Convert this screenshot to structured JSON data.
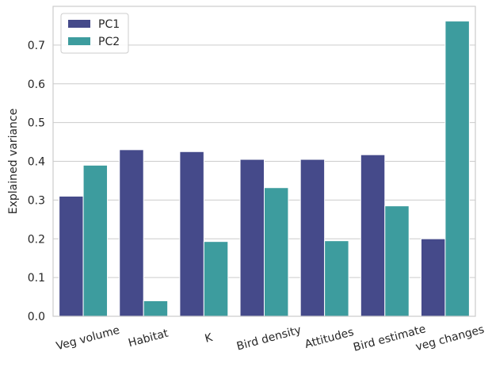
{
  "chart_data": {
    "type": "bar",
    "title": "",
    "xlabel": "",
    "ylabel": "Explained variance",
    "categories": [
      "Veg volume",
      "Habitat",
      "K",
      "Bird density",
      "Attitudes",
      "Bird estimate",
      "veg changes"
    ],
    "series": [
      {
        "name": "PC1",
        "color": "#454a8a",
        "values": [
          0.31,
          0.43,
          0.425,
          0.405,
          0.405,
          0.417,
          0.2
        ]
      },
      {
        "name": "PC2",
        "color": "#3d9c9e",
        "values": [
          0.39,
          0.04,
          0.193,
          0.332,
          0.195,
          0.285,
          0.762
        ]
      }
    ],
    "ylim": [
      0,
      0.8
    ],
    "yticks": [
      "0.0",
      "0.1",
      "0.2",
      "0.3",
      "0.4",
      "0.5",
      "0.6",
      "0.7"
    ],
    "grid": true,
    "legend_position": "top-left",
    "xtick_rotation": "15 degrees"
  }
}
